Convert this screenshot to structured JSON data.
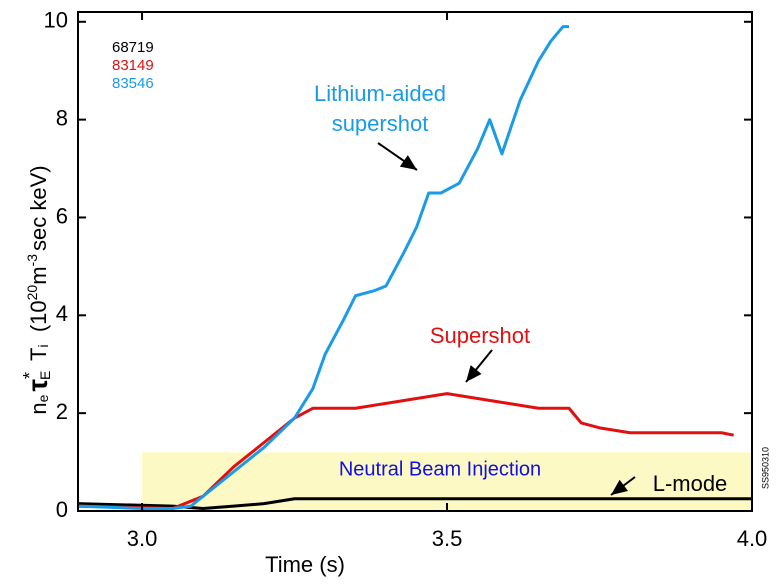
{
  "chart_data": {
    "type": "line",
    "xlabel": "Time (s)",
    "ylabel_parts": [
      "n",
      "e",
      "τ",
      "*",
      "E",
      " T",
      "i",
      "  (10",
      "20",
      "m",
      "-3",
      "sec keV)"
    ],
    "figure_id": "SS950310",
    "xlim": [
      2.895,
      4.0
    ],
    "ylim": [
      0,
      10.2
    ],
    "xticks": [
      {
        "value": 3.0,
        "label": "3.0"
      },
      {
        "value": 3.5,
        "label": "3.5"
      },
      {
        "value": 4.0,
        "label": "4.0"
      }
    ],
    "yticks": [
      0,
      2,
      4,
      6,
      8,
      10
    ],
    "span": {
      "label": "Neutral Beam Injection",
      "x": [
        3.0,
        4.0
      ],
      "y": [
        0,
        1.2
      ],
      "color": "#fdf9c4",
      "text_color": "#1010e0"
    },
    "annotations": [
      "Lithium-aided",
      "supershot",
      "Supershot",
      "L-mode"
    ],
    "series": [
      {
        "name": "68719",
        "color": "#000000",
        "x": [
          2.895,
          3.05,
          3.1,
          3.15,
          3.2,
          3.25,
          3.4,
          3.6,
          3.8,
          4.0
        ],
        "values": [
          0.15,
          0.1,
          0.05,
          0.1,
          0.15,
          0.25,
          0.25,
          0.25,
          0.25,
          0.25
        ]
      },
      {
        "name": "83149",
        "color": "#e01010",
        "x": [
          2.895,
          3.05,
          3.1,
          3.15,
          3.2,
          3.25,
          3.28,
          3.3,
          3.35,
          3.4,
          3.45,
          3.5,
          3.55,
          3.6,
          3.65,
          3.7,
          3.72,
          3.75,
          3.8,
          3.85,
          3.9,
          3.95,
          3.97
        ],
        "values": [
          0.1,
          0.05,
          0.3,
          0.9,
          1.4,
          1.9,
          2.1,
          2.1,
          2.1,
          2.2,
          2.3,
          2.4,
          2.3,
          2.2,
          2.1,
          2.1,
          1.8,
          1.7,
          1.6,
          1.6,
          1.6,
          1.6,
          1.55
        ]
      },
      {
        "name": "83546",
        "color": "#1a9be8",
        "x": [
          2.895,
          3.0,
          3.05,
          3.08,
          3.1,
          3.15,
          3.2,
          3.25,
          3.28,
          3.3,
          3.33,
          3.35,
          3.38,
          3.4,
          3.43,
          3.45,
          3.47,
          3.49,
          3.52,
          3.55,
          3.57,
          3.59,
          3.62,
          3.65,
          3.67,
          3.69,
          3.7
        ],
        "values": [
          0.1,
          0.05,
          0.05,
          0.1,
          0.3,
          0.8,
          1.3,
          1.9,
          2.5,
          3.2,
          3.9,
          4.4,
          4.5,
          4.6,
          5.3,
          5.8,
          6.5,
          6.5,
          6.7,
          7.4,
          8.0,
          7.3,
          8.4,
          9.2,
          9.6,
          9.9,
          9.9
        ]
      }
    ]
  }
}
